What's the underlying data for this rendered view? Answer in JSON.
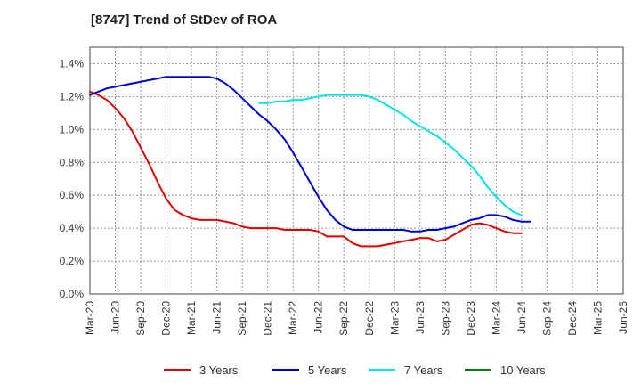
{
  "chart_data": {
    "type": "line",
    "title": "[8747]  Trend of StDev of ROA",
    "xlabel": "",
    "ylabel": "",
    "x_ticks": [
      "Mar-20",
      "Jun-20",
      "Sep-20",
      "Dec-20",
      "Mar-21",
      "Jun-21",
      "Sep-21",
      "Dec-21",
      "Mar-22",
      "Jun-22",
      "Sep-22",
      "Dec-22",
      "Mar-23",
      "Jun-23",
      "Sep-23",
      "Dec-23",
      "Mar-24",
      "Jun-24",
      "Sep-24",
      "Dec-24",
      "Mar-25",
      "Jun-25"
    ],
    "y_ticks": [
      "0.0%",
      "0.2%",
      "0.4%",
      "0.6%",
      "0.8%",
      "1.0%",
      "1.2%",
      "1.4%"
    ],
    "ylim": [
      0,
      1.5
    ],
    "grid": true,
    "legend_position": "bottom",
    "series": [
      {
        "name": "3 Years",
        "color": "#e00000",
        "points": [
          [
            0,
            1.23
          ],
          [
            1,
            1.21
          ],
          [
            2,
            1.18
          ],
          [
            3,
            1.13
          ],
          [
            4,
            1.07
          ],
          [
            5,
            0.99
          ],
          [
            6,
            0.89
          ],
          [
            7,
            0.79
          ],
          [
            8,
            0.68
          ],
          [
            9,
            0.58
          ],
          [
            10,
            0.51
          ],
          [
            11,
            0.48
          ],
          [
            12,
            0.46
          ],
          [
            13,
            0.45
          ],
          [
            14,
            0.45
          ],
          [
            15,
            0.45
          ],
          [
            16,
            0.44
          ],
          [
            17,
            0.43
          ],
          [
            18,
            0.41
          ],
          [
            19,
            0.4
          ],
          [
            20,
            0.4
          ],
          [
            21,
            0.4
          ],
          [
            22,
            0.4
          ],
          [
            23,
            0.39
          ],
          [
            24,
            0.39
          ],
          [
            25,
            0.39
          ],
          [
            26,
            0.39
          ],
          [
            27,
            0.38
          ],
          [
            28,
            0.35
          ],
          [
            29,
            0.35
          ],
          [
            30,
            0.35
          ],
          [
            31,
            0.31
          ],
          [
            32,
            0.29
          ],
          [
            33,
            0.29
          ],
          [
            34,
            0.29
          ],
          [
            35,
            0.3
          ],
          [
            36,
            0.31
          ],
          [
            37,
            0.32
          ],
          [
            38,
            0.33
          ],
          [
            39,
            0.34
          ],
          [
            40,
            0.34
          ],
          [
            41,
            0.32
          ],
          [
            42,
            0.33
          ],
          [
            43,
            0.36
          ],
          [
            44,
            0.39
          ],
          [
            45,
            0.42
          ],
          [
            46,
            0.43
          ],
          [
            47,
            0.42
          ],
          [
            48,
            0.4
          ],
          [
            49,
            0.38
          ],
          [
            50,
            0.37
          ],
          [
            51,
            0.37
          ]
        ]
      },
      {
        "name": "5 Years",
        "color": "#0000cc",
        "points": [
          [
            0,
            1.21
          ],
          [
            1,
            1.23
          ],
          [
            2,
            1.25
          ],
          [
            3,
            1.26
          ],
          [
            4,
            1.27
          ],
          [
            5,
            1.28
          ],
          [
            6,
            1.29
          ],
          [
            7,
            1.3
          ],
          [
            8,
            1.31
          ],
          [
            9,
            1.32
          ],
          [
            10,
            1.32
          ],
          [
            11,
            1.32
          ],
          [
            12,
            1.32
          ],
          [
            13,
            1.32
          ],
          [
            14,
            1.32
          ],
          [
            15,
            1.31
          ],
          [
            16,
            1.28
          ],
          [
            17,
            1.24
          ],
          [
            18,
            1.19
          ],
          [
            19,
            1.14
          ],
          [
            20,
            1.09
          ],
          [
            21,
            1.05
          ],
          [
            22,
            1.0
          ],
          [
            23,
            0.94
          ],
          [
            24,
            0.86
          ],
          [
            25,
            0.77
          ],
          [
            26,
            0.68
          ],
          [
            27,
            0.59
          ],
          [
            28,
            0.51
          ],
          [
            29,
            0.45
          ],
          [
            30,
            0.41
          ],
          [
            31,
            0.39
          ],
          [
            32,
            0.39
          ],
          [
            33,
            0.39
          ],
          [
            34,
            0.39
          ],
          [
            35,
            0.39
          ],
          [
            36,
            0.39
          ],
          [
            37,
            0.39
          ],
          [
            38,
            0.38
          ],
          [
            39,
            0.38
          ],
          [
            40,
            0.39
          ],
          [
            41,
            0.39
          ],
          [
            42,
            0.4
          ],
          [
            43,
            0.41
          ],
          [
            44,
            0.43
          ],
          [
            45,
            0.45
          ],
          [
            46,
            0.46
          ],
          [
            47,
            0.48
          ],
          [
            48,
            0.48
          ],
          [
            49,
            0.47
          ],
          [
            50,
            0.45
          ],
          [
            51,
            0.44
          ],
          [
            52,
            0.44
          ]
        ]
      },
      {
        "name": "7 Years",
        "color": "#00e5e5",
        "points": [
          [
            20,
            1.16
          ],
          [
            21,
            1.16
          ],
          [
            22,
            1.17
          ],
          [
            23,
            1.17
          ],
          [
            24,
            1.18
          ],
          [
            25,
            1.18
          ],
          [
            26,
            1.19
          ],
          [
            27,
            1.2
          ],
          [
            28,
            1.21
          ],
          [
            29,
            1.21
          ],
          [
            30,
            1.21
          ],
          [
            31,
            1.21
          ],
          [
            32,
            1.21
          ],
          [
            33,
            1.2
          ],
          [
            34,
            1.18
          ],
          [
            35,
            1.15
          ],
          [
            36,
            1.12
          ],
          [
            37,
            1.09
          ],
          [
            38,
            1.05
          ],
          [
            39,
            1.02
          ],
          [
            40,
            0.99
          ],
          [
            41,
            0.96
          ],
          [
            42,
            0.92
          ],
          [
            43,
            0.88
          ],
          [
            44,
            0.83
          ],
          [
            45,
            0.78
          ],
          [
            46,
            0.72
          ],
          [
            47,
            0.65
          ],
          [
            48,
            0.59
          ],
          [
            49,
            0.54
          ],
          [
            50,
            0.5
          ],
          [
            51,
            0.48
          ]
        ]
      },
      {
        "name": "10 Years",
        "color": "#008000",
        "points": []
      }
    ]
  }
}
